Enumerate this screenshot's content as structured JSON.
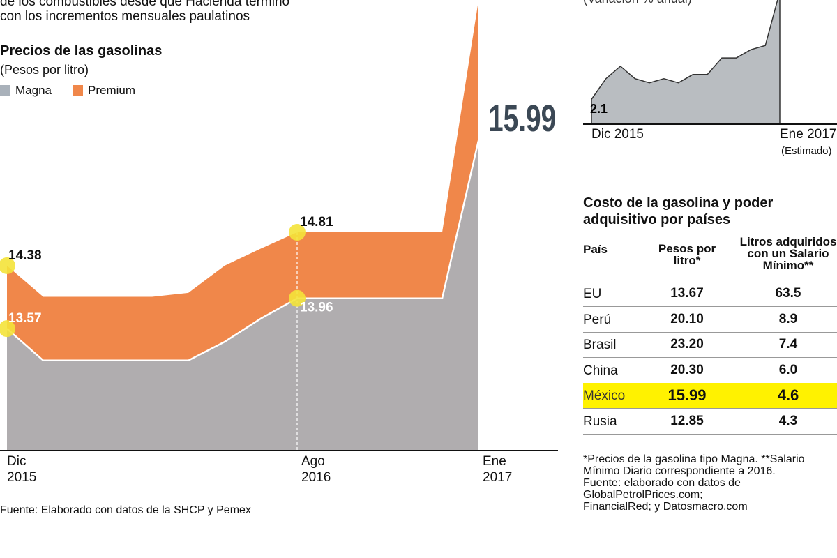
{
  "intro": [
    "de los combustibles desde que Hacienda terminó",
    "con los incrementos mensuales paulatinos"
  ],
  "chart_data": [
    {
      "type": "area",
      "title": "Precios de las gasolinas",
      "subtitle": "(Pesos por litro)",
      "categories": [
        "Dic 2015",
        null,
        null,
        null,
        null,
        null,
        null,
        null,
        "Ago 2016",
        null,
        null,
        null,
        null,
        "Ene 2017"
      ],
      "ylim": [
        12,
        17.8
      ],
      "series": [
        {
          "name": "Premium",
          "color": "#f0874a",
          "values": [
            14.38,
            13.98,
            13.98,
            13.98,
            13.98,
            14.03,
            14.38,
            14.6,
            14.81,
            14.81,
            14.81,
            14.81,
            14.81,
            17.79
          ],
          "value_labels": [
            "14.38",
            null,
            null,
            null,
            null,
            null,
            null,
            null,
            "14.81",
            null,
            null,
            null,
            null,
            null
          ]
        },
        {
          "name": "Magna",
          "color": "#a9b1ba",
          "values": [
            13.57,
            13.16,
            13.16,
            13.16,
            13.16,
            13.16,
            13.4,
            13.7,
            13.96,
            13.96,
            13.96,
            13.96,
            13.96,
            15.99
          ],
          "value_labels": [
            "13.57",
            null,
            null,
            null,
            null,
            null,
            null,
            null,
            "13.96",
            null,
            null,
            null,
            null,
            "15.99"
          ]
        }
      ],
      "source": "Fuente: Elaborado con datos de la SHCP y Pemex"
    },
    {
      "type": "area",
      "subtitle": "(Variación % anual)",
      "categories": [
        "Dic 2015",
        null,
        null,
        null,
        null,
        null,
        null,
        null,
        null,
        null,
        null,
        null,
        null,
        "Ene 2017"
      ],
      "annotation": "(Estimado)",
      "ylim": [
        1.5,
        4.5
      ],
      "color": "#b9bdc1",
      "values": [
        2.1,
        2.6,
        2.9,
        2.6,
        2.5,
        2.6,
        2.5,
        2.7,
        2.7,
        3.1,
        3.1,
        3.3,
        3.4,
        4.7
      ],
      "value_labels": [
        "2.1",
        null,
        null,
        null,
        null,
        null,
        null,
        null,
        null,
        null,
        null,
        null,
        null,
        null
      ]
    }
  ],
  "table": {
    "title": "Costo de la gasolina y poder adquisitivo por países",
    "columns": [
      "País",
      "Pesos por litro*",
      "Litros adquiridos con un Salario Mínimo**"
    ],
    "rows": [
      [
        "EU",
        "13.67",
        "63.5"
      ],
      [
        "Perú",
        "20.10",
        "8.9"
      ],
      [
        "Brasil",
        "23.20",
        "7.4"
      ],
      [
        "China",
        "20.30",
        "6.0"
      ],
      [
        "México",
        "15.99",
        "4.6"
      ],
      [
        "Rusia",
        "12.85",
        "4.3"
      ]
    ],
    "highlight": "México",
    "notes": [
      "*Precios de la gasolina tipo Magna. **Salario Mínimo Diario correspondiente a 2016.",
      "Fuente: elaborado con datos de GlobalPetrolPrices.com;",
      "FinancialRed; y Datosmacro.com"
    ]
  }
}
